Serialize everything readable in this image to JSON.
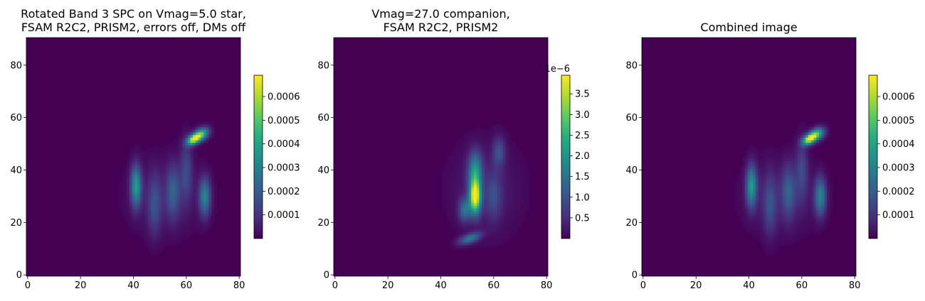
{
  "chart_data": [
    {
      "type": "heatmap",
      "title": "Rotated Band 3 SPC on Vmag=5.0 star,\nFSAM R2C2, PRISM2, errors off, DMs off",
      "title_lines": [
        "Rotated Band 3 SPC on Vmag=5.0 star,",
        "FSAM R2C2, PRISM2, errors off, DMs off"
      ],
      "colormap": "viridis",
      "xlim": [
        -0.5,
        80.5
      ],
      "ylim": [
        -0.5,
        90.5
      ],
      "xticks": [
        0,
        20,
        40,
        60,
        80
      ],
      "xtick_labels": [
        "0",
        "20",
        "40",
        "60",
        "80"
      ],
      "yticks": [
        0,
        20,
        40,
        60,
        80
      ],
      "ytick_labels": [
        "0",
        "20",
        "40",
        "60",
        "80"
      ],
      "colorbar": {
        "range": [
          0,
          0.00069
        ],
        "ticks": [
          0.0001,
          0.0002,
          0.0003,
          0.0004,
          0.0005,
          0.0006
        ],
        "tick_labels": [
          "0.0001",
          "0.0002",
          "0.0003",
          "0.0004",
          "0.0005",
          "0.0006"
        ],
        "offset_text": ""
      },
      "features": [
        {
          "x": 63,
          "y": 52,
          "sx": 2.0,
          "sy": 1.2,
          "amp": 0.00068,
          "rot": 0.6
        },
        {
          "x": 66,
          "y": 54,
          "sx": 2.0,
          "sy": 1.5,
          "amp": 0.0004,
          "rot": 0.6
        },
        {
          "x": 41,
          "y": 34,
          "sx": 1.4,
          "sy": 5.5,
          "amp": 0.00036,
          "rot": 0
        },
        {
          "x": 67,
          "y": 30,
          "sx": 1.5,
          "sy": 5.0,
          "amp": 0.0003,
          "rot": 0
        },
        {
          "x": 55,
          "y": 32,
          "sx": 1.8,
          "sy": 7.0,
          "amp": 0.00018,
          "rot": 0
        },
        {
          "x": 48,
          "y": 27,
          "sx": 1.8,
          "sy": 8.0,
          "amp": 0.00014,
          "rot": 0
        },
        {
          "x": 60,
          "y": 40,
          "sx": 1.6,
          "sy": 8.0,
          "amp": 0.00014,
          "rot": 0
        },
        {
          "x": 52,
          "y": 30,
          "sx": 10.0,
          "sy": 10.0,
          "amp": 5e-05,
          "rot": 0
        }
      ]
    },
    {
      "type": "heatmap",
      "title": "Vmag=27.0 companion,\nFSAM R2C2, PRISM2",
      "title_lines": [
        "Vmag=27.0 companion,",
        "FSAM R2C2, PRISM2"
      ],
      "colormap": "viridis",
      "xlim": [
        -0.5,
        80.5
      ],
      "ylim": [
        -0.5,
        90.5
      ],
      "xticks": [
        0,
        20,
        40,
        60,
        80
      ],
      "xtick_labels": [
        "0",
        "20",
        "40",
        "60",
        "80"
      ],
      "yticks": [
        0,
        20,
        40,
        60,
        80
      ],
      "ytick_labels": [
        "0",
        "20",
        "40",
        "60",
        "80"
      ],
      "colorbar": {
        "range": [
          0,
          3.95
        ],
        "ticks": [
          0.5,
          1.0,
          1.5,
          2.0,
          2.5,
          3.0,
          3.5
        ],
        "tick_labels": [
          "0.5",
          "1.0",
          "1.5",
          "2.0",
          "2.5",
          "3.0",
          "3.5"
        ],
        "offset_text": "1e−6"
      },
      "features": [
        {
          "x": 53,
          "y": 30,
          "sx": 1.5,
          "sy": 4.5,
          "amp": 3.9,
          "rot": 0
        },
        {
          "x": 53,
          "y": 40,
          "sx": 1.8,
          "sy": 5.0,
          "amp": 1.8,
          "rot": 0
        },
        {
          "x": 49,
          "y": 25,
          "sx": 1.5,
          "sy": 3.0,
          "amp": 1.4,
          "rot": 0
        },
        {
          "x": 51,
          "y": 14,
          "sx": 3.0,
          "sy": 1.2,
          "amp": 1.6,
          "rot": 0.35
        },
        {
          "x": 62,
          "y": 47,
          "sx": 1.6,
          "sy": 4.0,
          "amp": 0.9,
          "rot": 0
        },
        {
          "x": 60,
          "y": 30,
          "sx": 2.0,
          "sy": 6.0,
          "amp": 0.7,
          "rot": 0
        },
        {
          "x": 57,
          "y": 33,
          "sx": 9.0,
          "sy": 12.0,
          "amp": 0.35,
          "rot": 0
        }
      ]
    },
    {
      "type": "heatmap",
      "title": "Combined image",
      "title_lines": [
        "Combined image"
      ],
      "colormap": "viridis",
      "xlim": [
        -0.5,
        80.5
      ],
      "ylim": [
        -0.5,
        90.5
      ],
      "xticks": [
        0,
        20,
        40,
        60,
        80
      ],
      "xtick_labels": [
        "0",
        "20",
        "40",
        "60",
        "80"
      ],
      "yticks": [
        0,
        20,
        40,
        60,
        80
      ],
      "ytick_labels": [
        "0",
        "20",
        "40",
        "60",
        "80"
      ],
      "colorbar": {
        "range": [
          0,
          0.00069
        ],
        "ticks": [
          0.0001,
          0.0002,
          0.0003,
          0.0004,
          0.0005,
          0.0006
        ],
        "tick_labels": [
          "0.0001",
          "0.0002",
          "0.0003",
          "0.0004",
          "0.0005",
          "0.0006"
        ],
        "offset_text": ""
      },
      "features": [
        {
          "x": 63,
          "y": 52,
          "sx": 2.0,
          "sy": 1.2,
          "amp": 0.00068,
          "rot": 0.6
        },
        {
          "x": 66,
          "y": 54,
          "sx": 2.0,
          "sy": 1.5,
          "amp": 0.0004,
          "rot": 0.6
        },
        {
          "x": 41,
          "y": 34,
          "sx": 1.4,
          "sy": 5.5,
          "amp": 0.00036,
          "rot": 0
        },
        {
          "x": 67,
          "y": 30,
          "sx": 1.5,
          "sy": 5.0,
          "amp": 0.0003,
          "rot": 0
        },
        {
          "x": 55,
          "y": 32,
          "sx": 1.8,
          "sy": 7.0,
          "amp": 0.00018,
          "rot": 0
        },
        {
          "x": 48,
          "y": 27,
          "sx": 1.8,
          "sy": 8.0,
          "amp": 0.00014,
          "rot": 0
        },
        {
          "x": 60,
          "y": 40,
          "sx": 1.6,
          "sy": 8.0,
          "amp": 0.00014,
          "rot": 0
        },
        {
          "x": 52,
          "y": 30,
          "sx": 10.0,
          "sy": 10.0,
          "amp": 5e-05,
          "rot": 0
        }
      ]
    }
  ]
}
